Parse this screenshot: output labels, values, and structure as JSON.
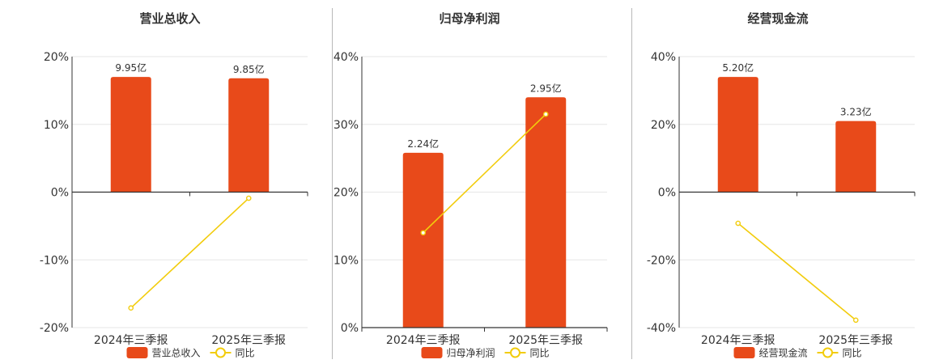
{
  "colors": {
    "bar": "#e84a1a",
    "line": "#f2cc0c",
    "axis": "#333333",
    "grid": "#e6e6e6"
  },
  "chart_data": [
    {
      "type": "bar",
      "title": "营业总收入",
      "categories": [
        "2024年三季报",
        "2025年三季报"
      ],
      "ylim": [
        -20,
        20
      ],
      "yticks": [
        -20,
        -10,
        0,
        10,
        20
      ],
      "ytick_labels": [
        "-20%",
        "-10%",
        "0%",
        "10%",
        "20%"
      ],
      "series": [
        {
          "name": "营业总收入",
          "kind": "bar",
          "values": [
            17,
            16.8
          ],
          "labels": [
            "9.95亿",
            "9.85亿"
          ]
        },
        {
          "name": "同比",
          "kind": "line",
          "values": [
            -17.1,
            -0.9
          ]
        }
      ],
      "legend": "bottom",
      "grid": true
    },
    {
      "type": "bar",
      "title": "归母净利润",
      "categories": [
        "2024年三季报",
        "2025年三季报"
      ],
      "ylim": [
        0,
        40
      ],
      "yticks": [
        0,
        10,
        20,
        30,
        40
      ],
      "ytick_labels": [
        "0%",
        "10%",
        "20%",
        "30%",
        "40%"
      ],
      "series": [
        {
          "name": "归母净利润",
          "kind": "bar",
          "values": [
            25.8,
            34
          ],
          "labels": [
            "2.24亿",
            "2.95亿"
          ]
        },
        {
          "name": "同比",
          "kind": "line",
          "values": [
            14,
            31.5
          ]
        }
      ],
      "legend": "bottom",
      "grid": true
    },
    {
      "type": "bar",
      "title": "经营现金流",
      "categories": [
        "2024年三季报",
        "2025年三季报"
      ],
      "ylim": [
        -40,
        40
      ],
      "yticks": [
        -40,
        -20,
        0,
        20,
        40
      ],
      "ytick_labels": [
        "-40%",
        "-20%",
        "0%",
        "20%",
        "40%"
      ],
      "series": [
        {
          "name": "经营现金流",
          "kind": "bar",
          "values": [
            34,
            21
          ],
          "labels": [
            "5.20亿",
            "3.23亿"
          ]
        },
        {
          "name": "同比",
          "kind": "line",
          "values": [
            -9.2,
            -37.8
          ]
        }
      ],
      "legend": "bottom",
      "grid": true
    }
  ]
}
